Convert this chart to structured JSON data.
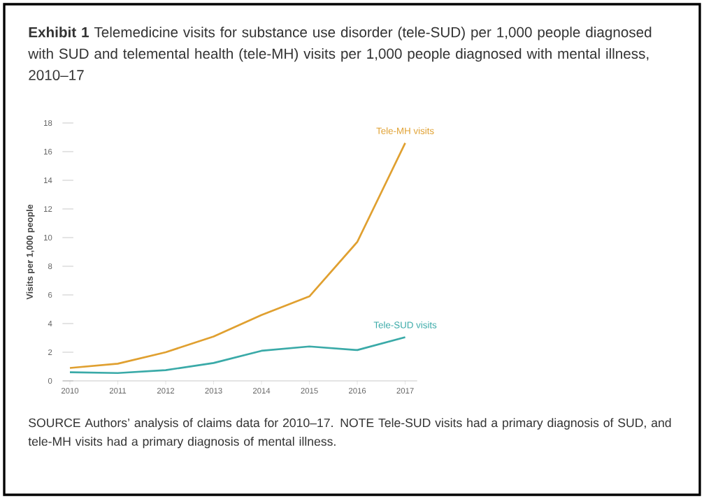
{
  "chart_data": {
    "type": "line",
    "title": "**Exhibit 1** Telemedicine visits for substance use disorder (tele-SUD) per 1,000 people diagnosed with SUD and telemental health (tele-MH) visits per 1,000 people diagnosed with mental illness, 2010–17",
    "ylabel": "Visits per 1,000 people",
    "categories": [
      "2010",
      "2011",
      "2012",
      "2013",
      "2014",
      "2015",
      "2016",
      "2017"
    ],
    "series": [
      {
        "name": "Tele-MH visits",
        "color": "#e0a030",
        "values": [
          0.9,
          1.2,
          2.0,
          3.1,
          4.6,
          5.9,
          9.7,
          16.6
        ]
      },
      {
        "name": "Tele-SUD visits",
        "color": "#3aaaa8",
        "values": [
          0.6,
          0.55,
          0.75,
          1.25,
          2.1,
          2.4,
          2.15,
          3.05
        ]
      }
    ],
    "ylim": [
      0,
      18
    ],
    "yticks": [
      0,
      2,
      4,
      6,
      8,
      10,
      12,
      14,
      16,
      18
    ],
    "annotations": [
      "SOURCE Authors’ analysis of claims data for 2010–17. NOTE Tele-SUD visits had a primary diagnosis of SUD, and tele-MH visits had a primary diagnosis of mental illness."
    ]
  }
}
